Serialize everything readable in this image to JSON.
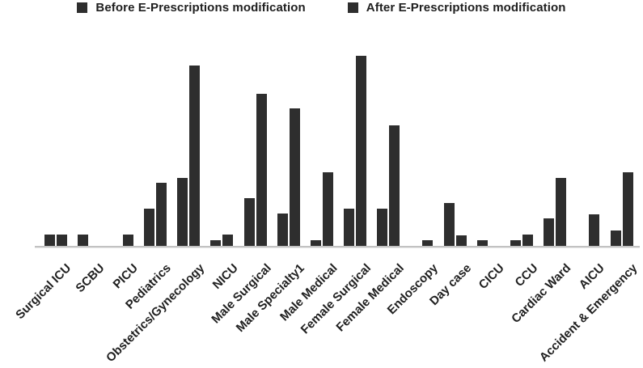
{
  "legend": {
    "items": [
      {
        "label": "Before E-Prescriptions modification",
        "color": "#2e2e2e"
      },
      {
        "label": "After E-Prescriptions modification",
        "color": "#2e2e2e"
      }
    ]
  },
  "chart_data": {
    "type": "bar",
    "title": "",
    "xlabel": "",
    "ylabel": "",
    "categories": [
      "Surgical ICU",
      "SCBU",
      "PICU",
      "Pediatrics",
      "Obstetrics/Gynecology",
      "NICU",
      "Male Surgical",
      "Male Specialty1",
      "Male Medical",
      "Female Surgical",
      "Female Medical",
      "Endoscopy",
      "Day case",
      "CICU",
      "CCU",
      "Cardiac Ward",
      "AICU",
      "Accident & Emergency"
    ],
    "series": [
      {
        "name": "Before E-Prescriptions modification",
        "values": [
          14,
          14,
          0,
          45,
          83,
          7,
          58,
          39,
          7,
          45,
          45,
          0,
          52,
          7,
          7,
          33,
          0,
          19
        ]
      },
      {
        "name": "After E-Prescriptions modification",
        "values": [
          14,
          0,
          14,
          77,
          219,
          14,
          185,
          167,
          90,
          231,
          147,
          7,
          13,
          0,
          14,
          83,
          38,
          90
        ]
      }
    ],
    "ylim": [
      0,
      240
    ],
    "y_axis_visible": false,
    "grid": false,
    "legend_position": "top",
    "bar_color": "#2e2e2e",
    "axis_line_color": "#c2c2c2",
    "label_rotation_deg": 45
  }
}
